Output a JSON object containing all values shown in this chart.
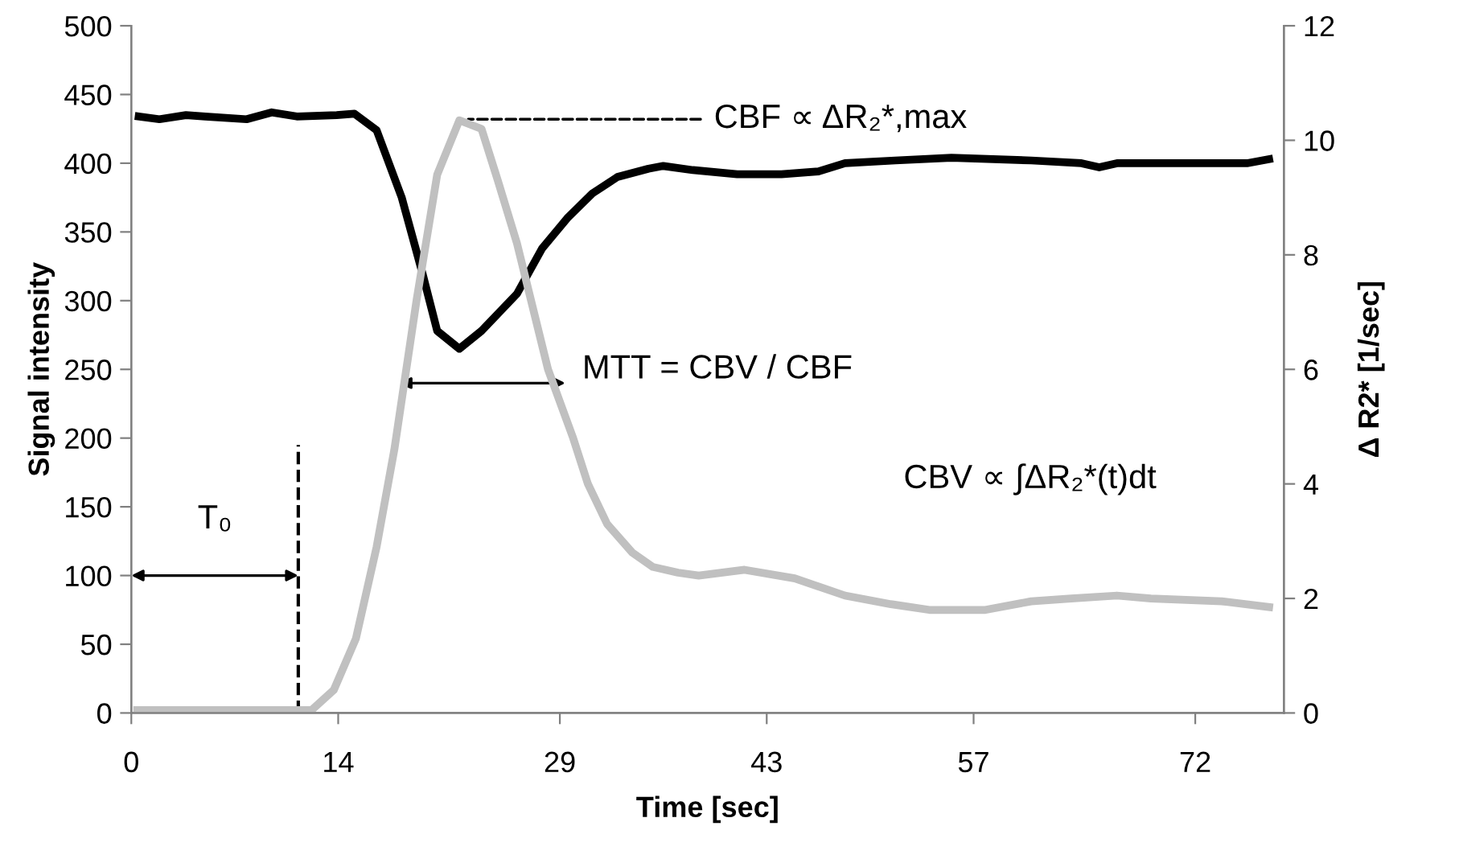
{
  "chart_data": {
    "type": "line",
    "xlabel": "Time [sec]",
    "ylabel": "Signal intensity",
    "y2label": "Δ R2* [1/sec]",
    "xlim": [
      0,
      78
    ],
    "xticks": [
      0,
      14,
      29,
      43,
      57,
      72
    ],
    "ref_lines": [
      {
        "axis": "x",
        "value": 11.3,
        "line_style": "dashed",
        "color": "#000000"
      }
    ],
    "ylim": [
      0,
      500
    ],
    "yticks": [
      0,
      50,
      100,
      150,
      200,
      250,
      300,
      350,
      400,
      450,
      500
    ],
    "y2lim": [
      0,
      12
    ],
    "y2ticks": [
      0,
      2,
      4,
      6,
      8,
      10,
      12
    ],
    "grid": false,
    "legend": false,
    "marker": "none",
    "line_style": "solid",
    "series": [
      {
        "color": "#000000",
        "x": [
          0.5,
          1.9,
          3.7,
          5,
          7.8,
          9.5,
          11.2,
          13.9,
          15.1,
          16.6,
          18.3,
          19.7,
          20.7,
          22.2,
          23.7,
          26.1,
          27.8,
          29.5,
          31.2,
          32.9,
          35,
          36,
          38,
          41,
          44,
          46.5,
          48.3,
          51.7,
          55.5,
          60.9,
          64.3,
          65.5,
          66.7,
          71,
          75.5,
          77
        ],
        "values": [
          434,
          432,
          435,
          434,
          432,
          437,
          434,
          435,
          436,
          424,
          375,
          320,
          278,
          265,
          278,
          305,
          338,
          360,
          378,
          390,
          396,
          398,
          395,
          392,
          392,
          394,
          400,
          402,
          404,
          402,
          400,
          397,
          400,
          400,
          400,
          403
        ]
      },
      {
        "color": "#c0c0c0",
        "axis": "y2",
        "x": [
          0.4,
          12.2,
          13.7,
          15.2,
          16.6,
          17.8,
          19.3,
          20.7,
          22.2,
          23.7,
          24.8,
          26.1,
          28.2,
          29.9,
          30.9,
          32.2,
          33.9,
          35.3,
          37,
          38.4,
          41.5,
          44.9,
          48.3,
          51.4,
          54,
          57.8,
          60.9,
          63.6,
          66.7,
          69,
          73.8,
          77
        ],
        "values": [
          0.05,
          0.05,
          0.4,
          1.3,
          2.9,
          4.6,
          7.2,
          9.4,
          10.35,
          10.2,
          9.3,
          8.2,
          6.0,
          4.8,
          4.0,
          3.3,
          2.8,
          2.55,
          2.45,
          2.4,
          2.5,
          2.35,
          2.05,
          1.9,
          1.8,
          1.8,
          1.95,
          2.0,
          2.05,
          2.0,
          1.95,
          1.85
        ]
      }
    ],
    "annotations": [
      {
        "text": "CBF ∝ ΔR₂*,max",
        "x": 22.8,
        "y": 432
      },
      {
        "text": "MTT = CBV / CBF",
        "x": 28.4,
        "y": 240
      },
      "CBV ∝ ∫ΔR₂*(t)dt",
      "T₀"
    ]
  }
}
